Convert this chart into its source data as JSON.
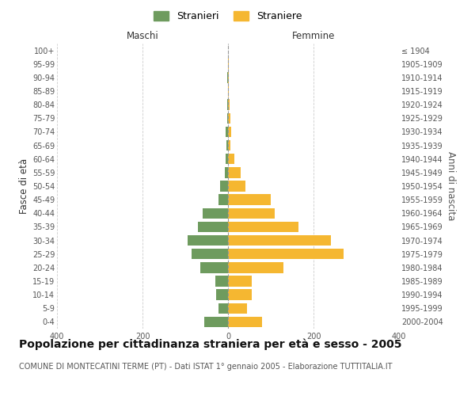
{
  "age_groups": [
    "0-4",
    "5-9",
    "10-14",
    "15-19",
    "20-24",
    "25-29",
    "30-34",
    "35-39",
    "40-44",
    "45-49",
    "50-54",
    "55-59",
    "60-64",
    "65-69",
    "70-74",
    "75-79",
    "80-84",
    "85-89",
    "90-94",
    "95-99",
    "100+"
  ],
  "birth_years": [
    "2000-2004",
    "1995-1999",
    "1990-1994",
    "1985-1989",
    "1980-1984",
    "1975-1979",
    "1970-1974",
    "1965-1969",
    "1960-1964",
    "1955-1959",
    "1950-1954",
    "1945-1949",
    "1940-1944",
    "1935-1939",
    "1930-1934",
    "1925-1929",
    "1920-1924",
    "1915-1919",
    "1910-1914",
    "1905-1909",
    "≤ 1904"
  ],
  "maschi": [
    55,
    22,
    28,
    30,
    65,
    85,
    95,
    70,
    60,
    22,
    18,
    8,
    5,
    4,
    5,
    2,
    1,
    0,
    1,
    0,
    0
  ],
  "femmine": [
    80,
    45,
    55,
    55,
    130,
    270,
    240,
    165,
    110,
    100,
    40,
    30,
    15,
    6,
    8,
    5,
    3,
    1,
    2,
    2,
    0
  ],
  "maschi_color": "#6e9b5e",
  "femmine_color": "#f5b731",
  "center_line_color": "#999999",
  "grid_color": "#cccccc",
  "bg_color": "#ffffff",
  "title": "Popolazione per cittadinanza straniera per età e sesso - 2005",
  "subtitle": "COMUNE DI MONTECATINI TERME (PT) - Dati ISTAT 1° gennaio 2005 - Elaborazione TUTTITALIA.IT",
  "ylabel_left": "Fasce di età",
  "ylabel_right": "Anni di nascita",
  "xlabel_left": "Maschi",
  "xlabel_right": "Femmine",
  "legend_maschi": "Stranieri",
  "legend_femmine": "Straniere",
  "xlim": 400,
  "title_fontsize": 10,
  "subtitle_fontsize": 7,
  "axis_label_fontsize": 8.5,
  "tick_fontsize": 7
}
